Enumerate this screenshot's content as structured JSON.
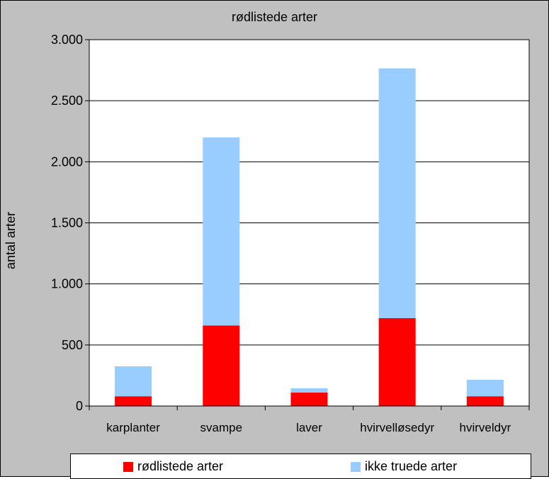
{
  "chart_data": {
    "type": "bar",
    "stacked": true,
    "title": "rødlistede arter",
    "xlabel": "",
    "ylabel": "antal arter",
    "categories": [
      "karplanter",
      "svampe",
      "laver",
      "hvirvelløsedyr",
      "hvirveldyr"
    ],
    "series": [
      {
        "name": "rødlistede arter",
        "values": [
          80,
          660,
          110,
          720,
          80
        ],
        "color": "#ff0000"
      },
      {
        "name": "ikke truede arter",
        "values": [
          245,
          1540,
          35,
          2045,
          135
        ],
        "color": "#99ccff"
      }
    ],
    "ylim": [
      0,
      3000
    ],
    "yticks": [
      0,
      500,
      1000,
      1500,
      2000,
      2500,
      3000
    ],
    "ytick_labels": [
      "0",
      "500",
      "1.000",
      "1.500",
      "2.000",
      "2.500",
      "3.000"
    ],
    "grid": true,
    "legend_position": "bottom"
  }
}
